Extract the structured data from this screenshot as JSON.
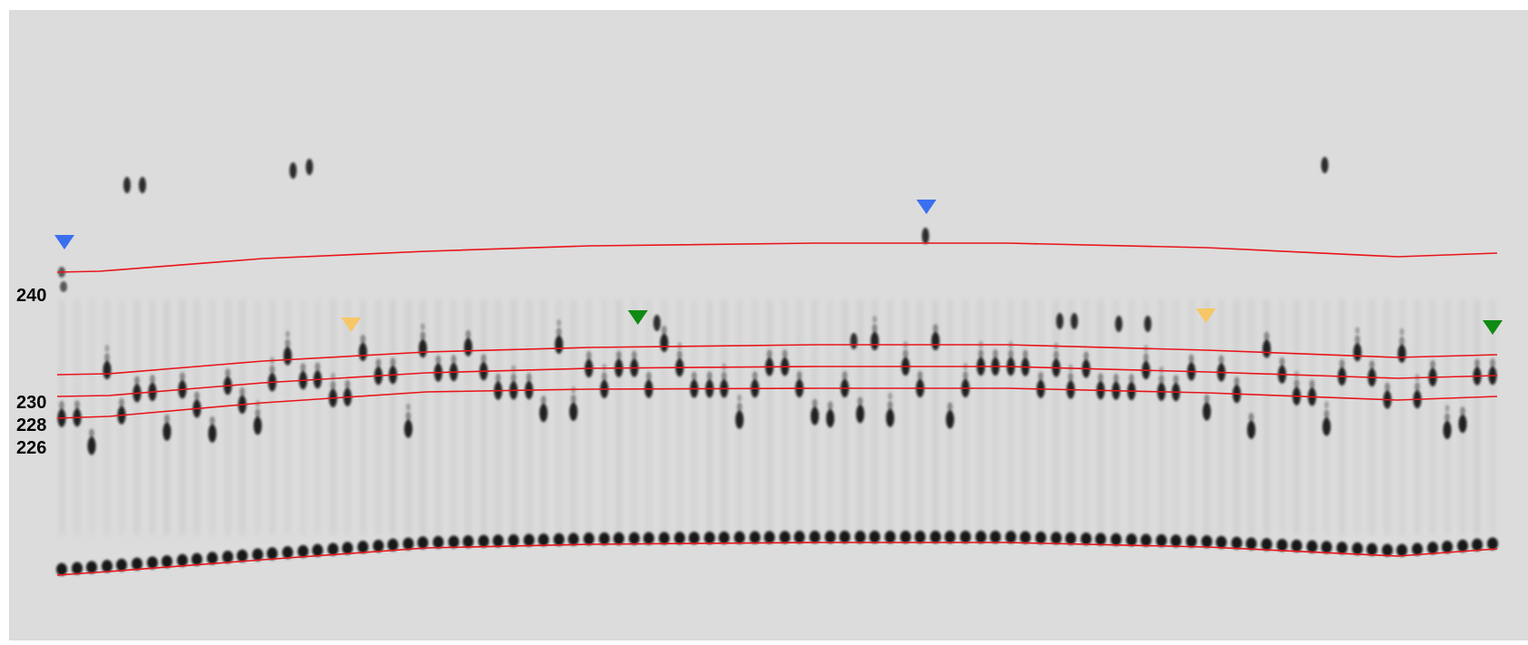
{
  "image": {
    "kind": "capillary electrophoresis gel",
    "background": "#dcdcdc",
    "band_color": "#0a0a0a",
    "ladder_line_color": "#e8151b"
  },
  "size_labels": [
    {
      "id": "240",
      "text": "240"
    },
    {
      "id": "230",
      "text": "230"
    },
    {
      "id": "228",
      "text": "228"
    },
    {
      "id": "226",
      "text": "226"
    }
  ],
  "markers": {
    "blue": "#3a6ff0",
    "orange": "#f7c766",
    "green": "#0f8a12"
  }
}
